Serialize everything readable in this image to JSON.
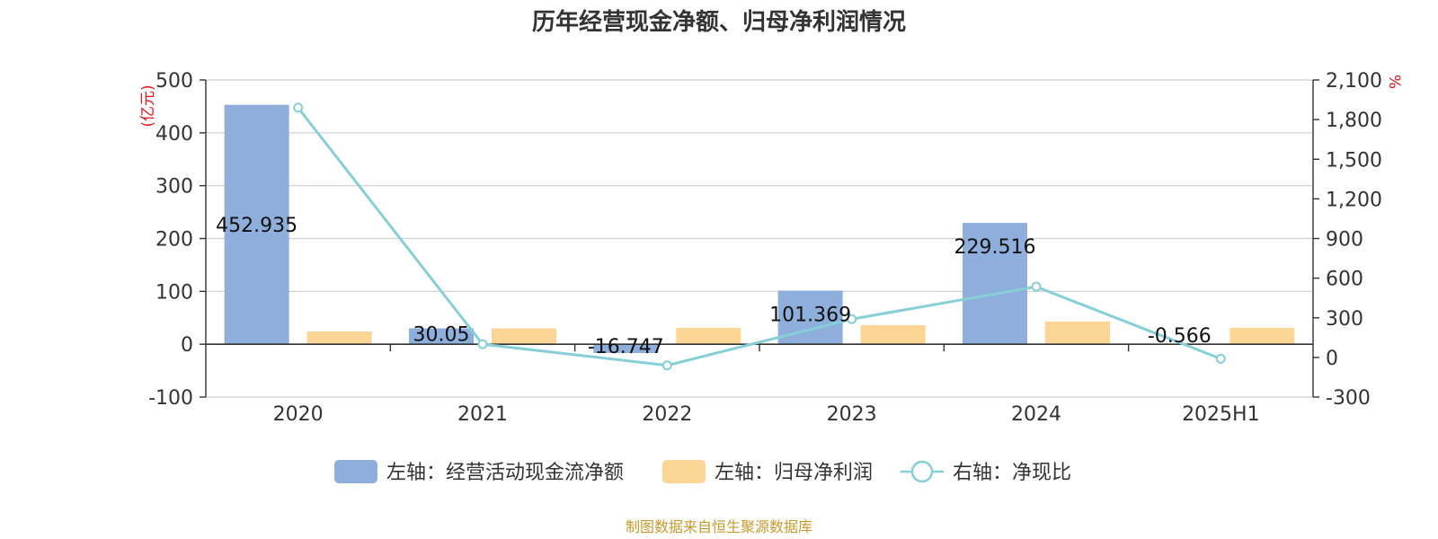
{
  "chart_data": {
    "type": "bar",
    "title": "历年经营现金净额、归母净利润情况",
    "categories": [
      "2020",
      "2021",
      "2022",
      "2023",
      "2024",
      "2025H1"
    ],
    "left_axis": {
      "unit": "(亿元)",
      "ylim": [
        -100,
        500
      ],
      "ticks": [
        "500",
        "400",
        "300",
        "200",
        "100",
        "0",
        "-100"
      ],
      "tick_values": [
        500,
        400,
        300,
        200,
        100,
        0,
        -100
      ]
    },
    "right_axis": {
      "unit": "%",
      "ylim": [
        -300,
        2100
      ],
      "ticks": [
        "2,100",
        "1,800",
        "1,500",
        "1,200",
        "900",
        "600",
        "300",
        "0",
        "-300"
      ],
      "tick_values": [
        2100,
        1800,
        1500,
        1200,
        900,
        600,
        300,
        0,
        -300
      ]
    },
    "series": [
      {
        "name": "左轴：经营活动现金流净额",
        "type": "bar",
        "axis": "left",
        "color": "#8eaedc",
        "values": [
          452.935,
          30.05,
          -16.747,
          101.369,
          229.516,
          -0.566
        ],
        "labels": [
          "452.935",
          "30.05",
          "-16.747",
          "101.369",
          "229.516",
          "-0.566"
        ]
      },
      {
        "name": "左轴：归母净利润",
        "type": "bar",
        "axis": "left",
        "color": "#fdd595",
        "values": [
          24,
          30,
          31,
          36,
          43,
          31
        ]
      },
      {
        "name": "右轴：净现比",
        "type": "line",
        "axis": "right",
        "color": "#86cfd6",
        "values": [
          1890,
          100,
          -60,
          290,
          535,
          -10
        ]
      }
    ],
    "grid": true,
    "legend_position": "bottom",
    "source": "制图数据来自恒生聚源数据库",
    "source_color": "#c89a2e"
  }
}
